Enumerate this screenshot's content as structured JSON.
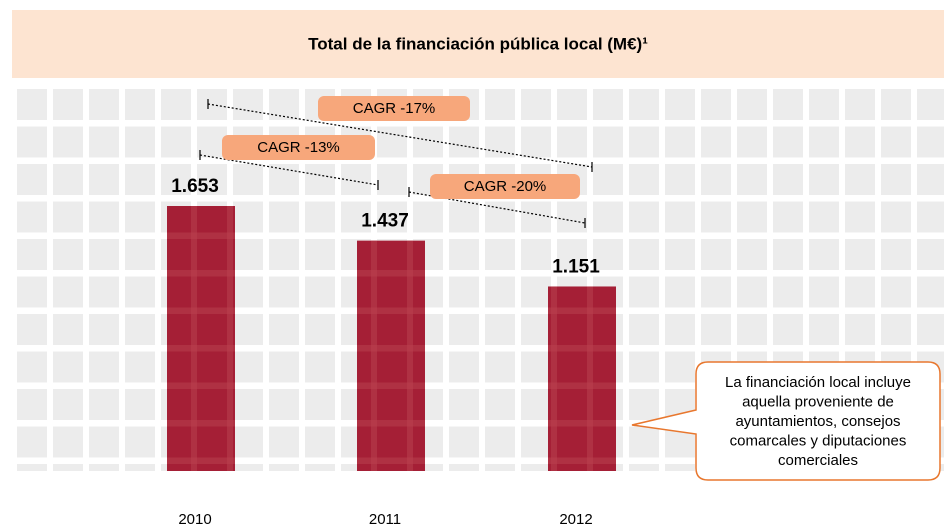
{
  "chart_data": {
    "type": "bar",
    "title": "Total de la financiación pública local (M€)¹",
    "categories": [
      "2010",
      "2011",
      "2012"
    ],
    "values": [
      1653,
      1437,
      1151
    ],
    "value_labels": [
      "1.653",
      "1.437",
      "1.151"
    ],
    "color": "#a51f36",
    "annotations": [
      "CAGR -17%",
      "CAGR -13%",
      "CAGR -20%"
    ],
    "callout": [
      "La financiación local incluye",
      "aquella proveniente de",
      "ayuntamientos, consejos",
      "comarcales y diputaciones",
      "comerciales"
    ]
  }
}
